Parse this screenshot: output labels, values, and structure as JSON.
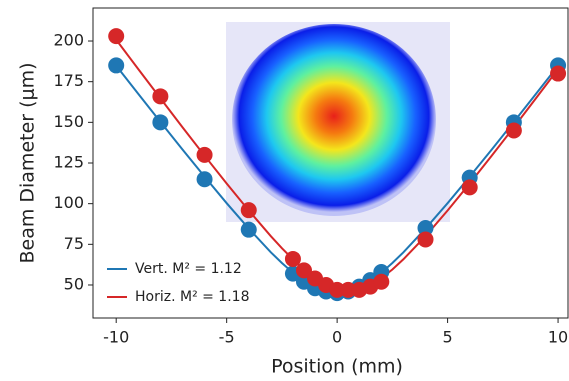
{
  "chart_data": {
    "type": "line",
    "xlabel": "Position (mm)",
    "ylabel": "Beam Diameter (μm)",
    "xlim": [
      -11.05,
      10.45
    ],
    "xticks": [
      -10,
      -5,
      0,
      5,
      10
    ],
    "ylim": [
      29.7,
      220.3
    ],
    "yticks": [
      50,
      75,
      100,
      125,
      150,
      175,
      200
    ],
    "legend": "lower left",
    "series": [
      {
        "name": "Vert. M² = 1.12",
        "color": "#1f77b4",
        "x": [
          -10,
          -9,
          -8,
          -7,
          -6,
          -5,
          -4,
          -3,
          -2.5,
          -2,
          -1.5,
          -1,
          -0.5,
          0,
          0.5,
          1,
          1.5,
          2,
          2.5,
          3,
          4,
          5,
          6,
          7,
          8,
          9,
          10
        ],
        "values": [
          184.8,
          167.5,
          150.3,
          133.3,
          116.6,
          100.3,
          84.7,
          70.1,
          63.5,
          57.5,
          52.4,
          48.4,
          45.9,
          45,
          45.9,
          48.4,
          52.4,
          57.5,
          63.5,
          70.1,
          84.7,
          100.3,
          116.6,
          133.3,
          150.3,
          167.5,
          184.8
        ]
      },
      {
        "name": "Horiz. M² = 1.18",
        "color": "#d62728",
        "x": [
          -10,
          -9,
          -8,
          -7,
          -6,
          -5,
          -4,
          -3,
          -2.5,
          -2,
          -1.5,
          -1,
          -0.5,
          0,
          0.5,
          1,
          1.5,
          2,
          2.5,
          3,
          4,
          5,
          6,
          7,
          8,
          9,
          10
        ],
        "values": [
          200.8,
          182.7,
          164.8,
          147.0,
          129.5,
          112.4,
          95.8,
          80.0,
          72.6,
          65.8,
          59.5,
          54.2,
          50.1,
          47.4,
          46.5,
          47.4,
          50.1,
          54.2,
          59.5,
          65.8,
          80.0,
          95.8,
          112.4,
          129.5,
          147.0,
          164.8,
          182.7
        ]
      }
    ],
    "points": [
      {
        "color": "#1f77b4",
        "x": [
          -10,
          -8,
          -6,
          -4,
          -2,
          -1.5,
          -1,
          -0.5,
          0,
          0.5,
          1,
          1.5,
          2,
          4,
          6,
          8,
          10
        ],
        "values": [
          185,
          150,
          115,
          84,
          57,
          52,
          48,
          46,
          45,
          46,
          49,
          53,
          58,
          85,
          116,
          150,
          185
        ]
      },
      {
        "color": "#d62728",
        "x": [
          -10,
          -8,
          -6,
          -4,
          -2,
          -1.5,
          -1,
          -0.5,
          0,
          0.5,
          1,
          1.5,
          2,
          4,
          6,
          8,
          10
        ],
        "values": [
          203,
          166,
          130,
          96,
          66,
          59,
          54,
          50,
          47,
          47,
          47,
          49,
          52,
          78,
          110,
          145,
          180
        ]
      }
    ]
  }
}
